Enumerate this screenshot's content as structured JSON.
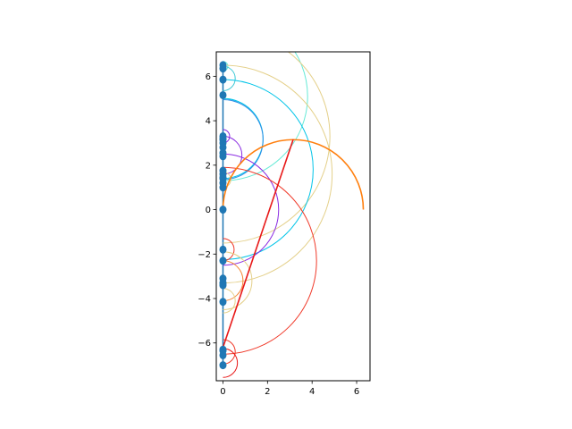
{
  "chart_data": {
    "type": "scatter",
    "title": "",
    "xlabel": "",
    "ylabel": "",
    "xlim": [
      -0.3,
      6.6
    ],
    "ylim": [
      -7.7,
      7.1
    ],
    "grid": false,
    "x_ticks": [
      0,
      2,
      4,
      6
    ],
    "y_ticks": [
      -6,
      -4,
      -2,
      0,
      2,
      4,
      6
    ],
    "points": {
      "color": "#1f77b4",
      "x": [
        0,
        0,
        0,
        0,
        0,
        0,
        0,
        0,
        0,
        0,
        0,
        0,
        0,
        0,
        0,
        0,
        0,
        0,
        0,
        0,
        0,
        0,
        0,
        0,
        0,
        0,
        0,
        0
      ],
      "y": [
        6.5,
        6.35,
        5.85,
        5.15,
        3.3,
        3.15,
        3.0,
        2.8,
        2.55,
        2.4,
        1.75,
        1.6,
        1.4,
        1.2,
        1.0,
        0.0,
        -1.8,
        -2.3,
        -3.1,
        -3.3,
        -3.4,
        -4.15,
        -6.35,
        -6.55,
        -7.0,
        -6.3,
        1.45,
        3.2
      ]
    },
    "vertical_line": {
      "x": 0,
      "y0": -7.0,
      "y1": 6.5,
      "color": "#1f77b4"
    },
    "arcs": [
      {
        "cx": 0.0,
        "cy": 6.45,
        "r": 0.22,
        "theta0": -90,
        "theta1": 90,
        "color": "#66ead6"
      },
      {
        "cx": 0.0,
        "cy": 5.1,
        "r": 3.8,
        "theta0": -90,
        "theta1": 90,
        "color": "#66ead6"
      },
      {
        "cx": 0.0,
        "cy": 5.9,
        "r": 0.55,
        "theta0": -90,
        "theta1": 90,
        "color": "#3ec9d6"
      },
      {
        "cx": 0.0,
        "cy": 3.2,
        "r": 1.8,
        "theta0": -90,
        "theta1": 90,
        "color": "#00c4e8"
      },
      {
        "cx": 0.0,
        "cy": 3.3,
        "r": 4.8,
        "theta0": -90,
        "theta1": 90,
        "color": "#e4d08a"
      },
      {
        "cx": 0.0,
        "cy": 3.15,
        "r": 1.8,
        "theta0": -90,
        "theta1": 90,
        "color": "#2f8fe6"
      },
      {
        "cx": 0.0,
        "cy": 3.3,
        "r": 0.3,
        "theta0": -90,
        "theta1": 90,
        "color": "#8a2be2"
      },
      {
        "cx": 0.0,
        "cy": 2.45,
        "r": 0.85,
        "theta0": -90,
        "theta1": 90,
        "color": "#8a2be2"
      },
      {
        "cx": 0.0,
        "cy": 1.8,
        "r": 4.05,
        "theta0": -90,
        "theta1": 90,
        "color": "#00c4e8"
      },
      {
        "cx": 0.0,
        "cy": 1.6,
        "r": 4.9,
        "theta0": -90,
        "theta1": 90,
        "color": "#e4d08a"
      },
      {
        "cx": 0.0,
        "cy": 0.0,
        "r": 2.5,
        "theta0": -90,
        "theta1": 90,
        "color": "#8a2be2"
      },
      {
        "cx": 0.0,
        "cy": 1.35,
        "r": 0.35,
        "theta0": -90,
        "theta1": 90,
        "color": "#e4d08a"
      },
      {
        "cx": 0.0,
        "cy": -2.3,
        "r": 4.2,
        "theta0": -90,
        "theta1": 90,
        "color": "#f03a2a"
      },
      {
        "cx": 0.0,
        "cy": -1.8,
        "r": 0.5,
        "theta0": -90,
        "theta1": 90,
        "color": "#f03a2a"
      },
      {
        "cx": 0.0,
        "cy": -3.2,
        "r": 1.3,
        "theta0": -90,
        "theta1": 90,
        "color": "#e4d08a"
      },
      {
        "cx": 0.0,
        "cy": -3.2,
        "r": 0.9,
        "theta0": -90,
        "theta1": 90,
        "color": "#f58a3a"
      },
      {
        "cx": 0.0,
        "cy": -4.1,
        "r": 0.55,
        "theta0": -90,
        "theta1": 90,
        "color": "#e4d08a"
      },
      {
        "cx": 0.0,
        "cy": -6.4,
        "r": 0.55,
        "theta0": -90,
        "theta1": 90,
        "color": "#f03a2a"
      },
      {
        "cx": 0.0,
        "cy": -6.9,
        "r": 0.65,
        "theta0": -90,
        "theta1": 90,
        "color": "#e81818"
      },
      {
        "cx": 3.15,
        "cy": 0.0,
        "r": 3.15,
        "theta0": 0,
        "theta1": 180,
        "color": "#ff7f0e",
        "width": 1.6
      }
    ],
    "segments": [
      {
        "x": [
          3.15,
          0.0
        ],
        "y": [
          3.15,
          -6.2
        ],
        "color": "#e81818",
        "width": 1.6
      }
    ]
  }
}
